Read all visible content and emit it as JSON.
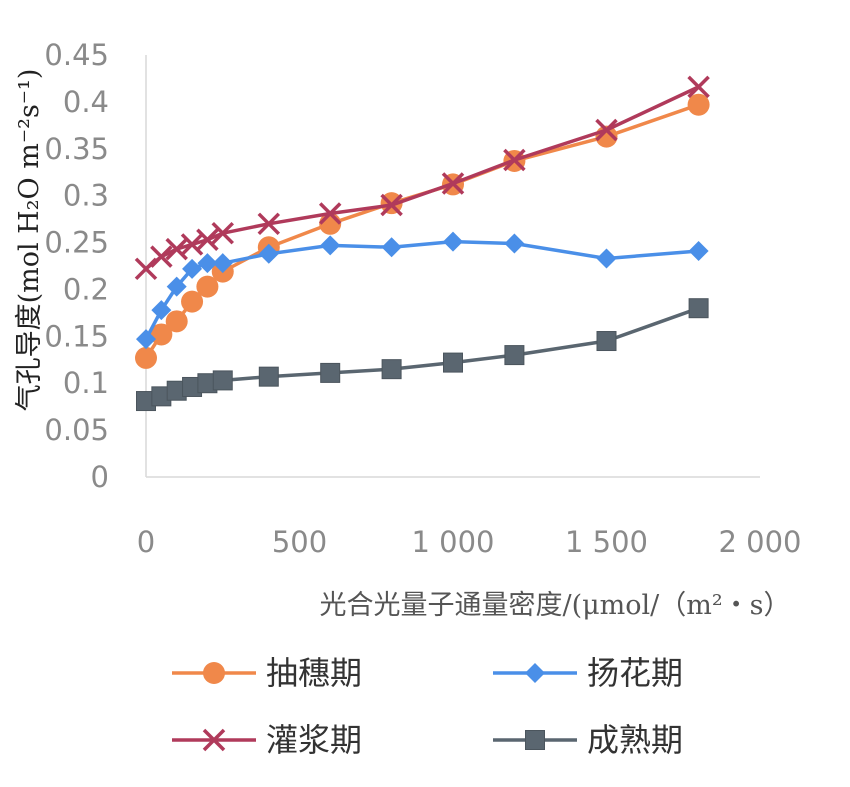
{
  "chart_data": {
    "type": "line",
    "xlabel": "光合光量子通量密度/(μmol/（m²・s）",
    "ylabel": "气孔导度(mol H₂O m⁻²s⁻¹)",
    "xlim": [
      0,
      2000
    ],
    "ylim": [
      0,
      0.45
    ],
    "x_ticks": [
      "0",
      "500",
      "1 000",
      "1 500",
      "2 000"
    ],
    "y_ticks": [
      "0",
      "0.05",
      "0.1",
      "0.15",
      "0.2",
      "0.25",
      "0.3",
      "0.35",
      "0.4",
      "0.45"
    ],
    "x_tick_values": [
      0,
      500,
      1000,
      1500,
      2000
    ],
    "y_tick_values": [
      0,
      0.05,
      0.1,
      0.15,
      0.2,
      0.25,
      0.3,
      0.35,
      0.4,
      0.45
    ],
    "grid": false,
    "legend_position": "bottom",
    "series": [
      {
        "name": "抽穗期",
        "color": "#f0884a",
        "marker": "circle",
        "x": [
          0,
          50,
          100,
          150,
          200,
          250,
          400,
          600,
          800,
          1000,
          1200,
          1500,
          1800
        ],
        "y": [
          0.127,
          0.152,
          0.166,
          0.187,
          0.203,
          0.219,
          0.245,
          0.27,
          0.292,
          0.312,
          0.337,
          0.363,
          0.397
        ]
      },
      {
        "name": "扬花期",
        "color": "#4a8fe8",
        "marker": "diamond",
        "x": [
          0,
          50,
          100,
          150,
          200,
          250,
          400,
          600,
          800,
          1000,
          1200,
          1500,
          1800
        ],
        "y": [
          0.147,
          0.178,
          0.203,
          0.222,
          0.228,
          0.228,
          0.238,
          0.247,
          0.245,
          0.251,
          0.249,
          0.233,
          0.241
        ]
      },
      {
        "name": "灌浆期",
        "color": "#b03a5b",
        "marker": "x",
        "x": [
          0,
          50,
          100,
          150,
          200,
          250,
          400,
          600,
          800,
          1000,
          1200,
          1500,
          1800
        ],
        "y": [
          0.222,
          0.235,
          0.243,
          0.248,
          0.253,
          0.26,
          0.27,
          0.281,
          0.29,
          0.313,
          0.338,
          0.37,
          0.416
        ]
      },
      {
        "name": "成熟期",
        "color": "#5a6670",
        "marker": "square",
        "x": [
          0,
          50,
          100,
          150,
          200,
          250,
          400,
          600,
          800,
          1000,
          1200,
          1500,
          1800
        ],
        "y": [
          0.081,
          0.086,
          0.092,
          0.096,
          0.1,
          0.103,
          0.107,
          0.111,
          0.115,
          0.122,
          0.13,
          0.145,
          0.18
        ]
      }
    ]
  }
}
